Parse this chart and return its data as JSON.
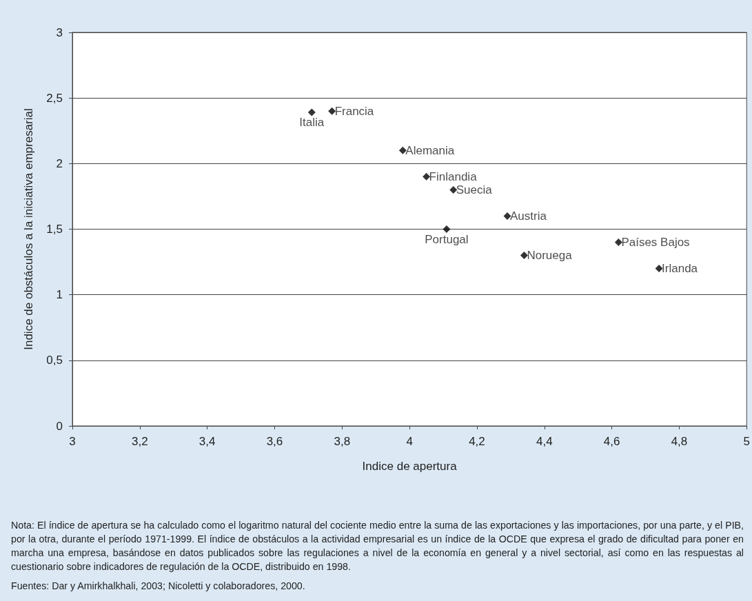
{
  "chart_data": {
    "type": "scatter",
    "xlabel": "Indice de apertura",
    "ylabel": "Indice de obstáculos a la iniciativa empresarial",
    "x": [
      3.71,
      3.77,
      3.98,
      4.05,
      4.13,
      4.29,
      4.11,
      4.34,
      4.62,
      4.74
    ],
    "values": [
      2.39,
      2.4,
      2.1,
      1.9,
      1.8,
      1.6,
      1.5,
      1.3,
      1.4,
      1.2
    ],
    "color": "#000000",
    "marker": "diamond",
    "grid": "y",
    "xlim": [
      3,
      5
    ],
    "xticks": [
      {
        "value": 3,
        "label": "3"
      },
      {
        "value": 3.2,
        "label": "3,2"
      },
      {
        "value": 3.4,
        "label": "3,4"
      },
      {
        "value": 3.6,
        "label": "3,6"
      },
      {
        "value": 3.8,
        "label": "3,8"
      },
      {
        "value": 4,
        "label": "4"
      },
      {
        "value": 4.2,
        "label": "4,2"
      },
      {
        "value": 4.4,
        "label": "4,4"
      },
      {
        "value": 4.6,
        "label": "4,6"
      },
      {
        "value": 4.8,
        "label": "4,8"
      },
      {
        "value": 5,
        "label": "5"
      }
    ],
    "ylim": [
      0,
      3
    ],
    "yticks": [
      {
        "value": 0,
        "label": "0"
      },
      {
        "value": 0.5,
        "label": "0,5"
      },
      {
        "value": 1,
        "label": "1"
      },
      {
        "value": 1.5,
        "label": "1,5"
      },
      {
        "value": 2,
        "label": "2"
      },
      {
        "value": 2.5,
        "label": "2,5"
      },
      {
        "value": 3,
        "label": "3"
      }
    ],
    "annotations": [
      {
        "text": "Italia",
        "x": 3.71,
        "y": 2.39
      },
      {
        "text": "Francia",
        "x": 3.77,
        "y": 2.4
      },
      {
        "text": "Alemania",
        "x": 3.98,
        "y": 2.1
      },
      {
        "text": "Finlandia",
        "x": 4.05,
        "y": 1.9
      },
      {
        "text": "Suecia",
        "x": 4.13,
        "y": 1.8
      },
      {
        "text": "Austria",
        "x": 4.29,
        "y": 1.6
      },
      {
        "text": "Portugal",
        "x": 4.11,
        "y": 1.5
      },
      {
        "text": "Noruega",
        "x": 4.34,
        "y": 1.3
      },
      {
        "text": "Países Bajos",
        "x": 4.62,
        "y": 1.4
      },
      {
        "text": "Irlanda",
        "x": 4.74,
        "y": 1.2
      },
      "Nota: El índice de apertura se ha calculado como el logaritmo natural del cociente medio entre la suma de las exportaciones y las importaciones, por una parte, y el PIB, por la otra, durante el período 1971-1999. El índice de obstáculos a la actividad empresarial es un índice de la OCDE que expresa el grado de dificultad para poner en marcha una empresa, basándose en datos publicados sobre las regulaciones a nivel de la economía en general y a nivel sectorial, así como en las respuestas al cuestionario sobre indicadores de regulación de la OCDE, distribuido en 1998.",
      "Fuentes: Dar y Amirkhalkhali, 2003; Nicoletti y colaboradores, 2000."
    ]
  }
}
